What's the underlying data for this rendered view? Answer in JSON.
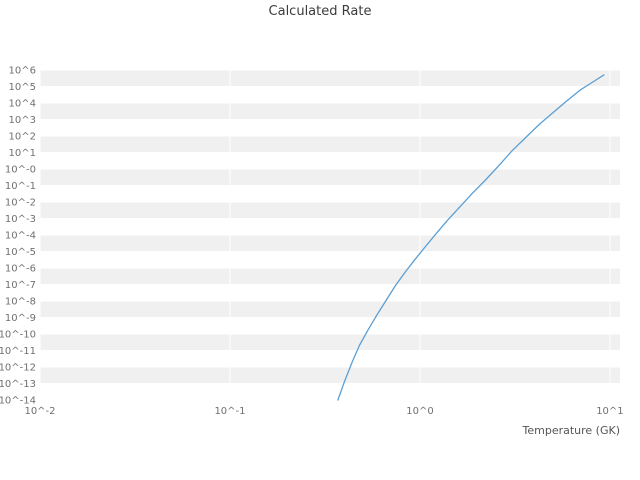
{
  "page": {
    "background": "#ffffff"
  },
  "chart_data": {
    "type": "line",
    "title": "Calculated Rate",
    "xlabel": "Temperature (GK)",
    "ylabel": "",
    "x_scale": "log",
    "y_scale": "log",
    "xlim_log": [
      -2,
      1.053
    ],
    "ylim_log": [
      -14,
      6.3
    ],
    "grid": {
      "band_color": "#f0f0f0",
      "gridline_color": "#ffffff",
      "legend_position": "none",
      "grid_on": true
    },
    "x_ticks": [
      {
        "label": "10^-2",
        "log": -2
      },
      {
        "label": "10^-1",
        "log": -1
      },
      {
        "label": "10^0",
        "log": 0
      },
      {
        "label": "10^1",
        "log": 1
      }
    ],
    "y_ticks": [
      {
        "label": "10^6",
        "log": 6
      },
      {
        "label": "10^5",
        "log": 5
      },
      {
        "label": "10^4",
        "log": 4
      },
      {
        "label": "10^3",
        "log": 3
      },
      {
        "label": "10^2",
        "log": 2
      },
      {
        "label": "10^1",
        "log": 1
      },
      {
        "label": "10^-0",
        "log": 0
      },
      {
        "label": "10^-1",
        "log": -1
      },
      {
        "label": "10^-2",
        "log": -2
      },
      {
        "label": "10^-3",
        "log": -3
      },
      {
        "label": "10^-4",
        "log": -4
      },
      {
        "label": "10^-5",
        "log": -5
      },
      {
        "label": "10^-6",
        "log": -6
      },
      {
        "label": "10^-7",
        "log": -7
      },
      {
        "label": "10^-8",
        "log": -8
      },
      {
        "label": "10^-9",
        "log": -9
      },
      {
        "label": "10^-10",
        "log": -10
      },
      {
        "label": "10^-11",
        "log": -11
      },
      {
        "label": "10^-12",
        "log": -12
      },
      {
        "label": "10^-13",
        "log": -13
      },
      {
        "label": "10^-14",
        "log": -14
      }
    ],
    "series": [
      {
        "name": "calculated-rate",
        "color": "#5b9fd4",
        "line_width": 1.3,
        "x": [
          0.37,
          0.4,
          0.44,
          0.48,
          0.53,
          0.59,
          0.66,
          0.74,
          0.83,
          0.94,
          1.07,
          1.22,
          1.4,
          1.62,
          1.88,
          2.2,
          2.6,
          3.05,
          3.6,
          4.25,
          5.0,
          5.9,
          7.0,
          8.2,
          9.3
        ],
        "log10_y": [
          -14,
          -12.9,
          -11.7,
          -10.7,
          -9.8,
          -8.9,
          -8.0,
          -7.1,
          -6.3,
          -5.5,
          -4.7,
          -3.9,
          -3.1,
          -2.3,
          -1.5,
          -0.7,
          0.2,
          1.1,
          1.9,
          2.7,
          3.4,
          4.1,
          4.8,
          5.3,
          5.7
        ]
      }
    ]
  }
}
